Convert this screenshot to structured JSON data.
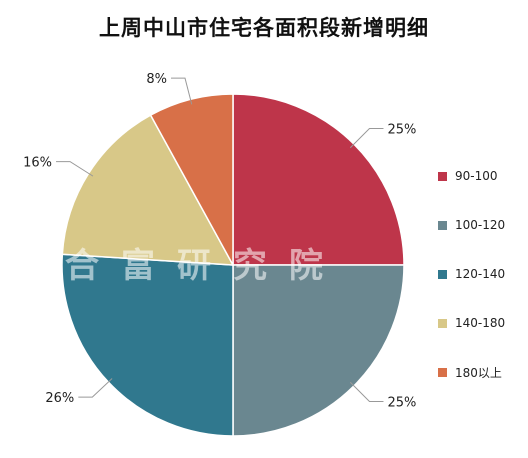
{
  "chart_data": {
    "type": "pie",
    "title": "上周中山市住宅各面积段新增明细",
    "slices": [
      {
        "label": "90-100",
        "value": 25,
        "value_label": "25%",
        "color": "#be354a"
      },
      {
        "label": "100-120",
        "value": 25,
        "value_label": "25%",
        "color": "#6a8790"
      },
      {
        "label": "120-140",
        "value": 26,
        "value_label": "26%",
        "color": "#30788e"
      },
      {
        "label": "140-180",
        "value": 16,
        "value_label": "16%",
        "color": "#d8c888"
      },
      {
        "label": "180以上",
        "value": 8,
        "value_label": "8%",
        "color": "#d87048"
      }
    ],
    "legend_position": "right"
  },
  "watermark": "合富研究院"
}
